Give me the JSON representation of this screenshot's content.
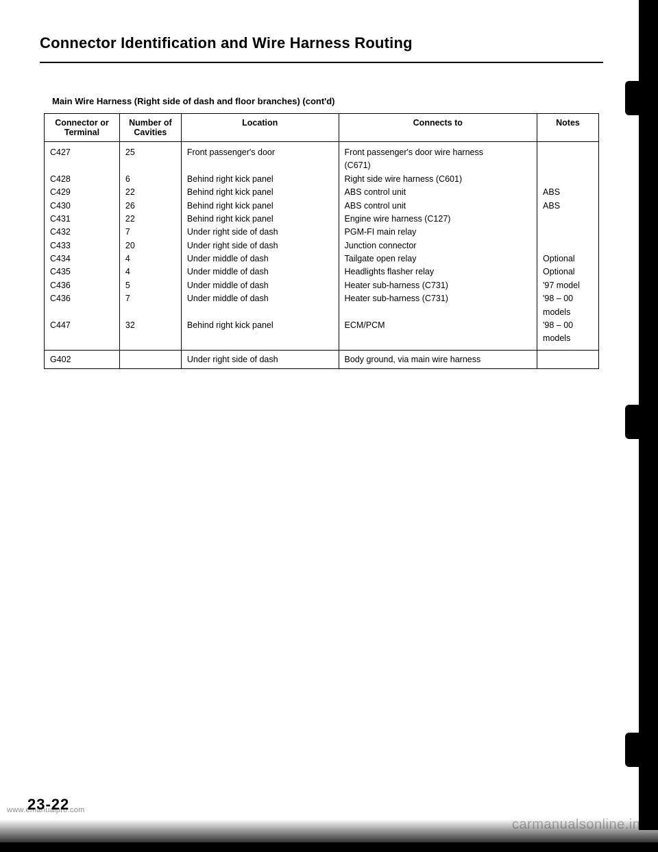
{
  "title": "Connector Identification and Wire Harness Routing",
  "subtitle": "Main Wire Harness (Right side of dash and floor branches) (cont'd)",
  "table": {
    "columns": [
      "Connector or Terminal",
      "Number of Cavities",
      "Location",
      "Connects to",
      "Notes"
    ],
    "body_rows": [
      {
        "ct": "C427",
        "nc": "25",
        "loc": "Front passenger's door",
        "conn": "Front passenger's door wire harness (C671)",
        "note": ""
      },
      {
        "ct": "C428",
        "nc": "6",
        "loc": "Behind right kick panel",
        "conn": "Right side wire harness (C601)",
        "note": ""
      },
      {
        "ct": "C429",
        "nc": "22",
        "loc": "Behind right kick panel",
        "conn": "ABS control unit",
        "note": "ABS"
      },
      {
        "ct": "C430",
        "nc": "26",
        "loc": "Behind right kick panel",
        "conn": "ABS control unit",
        "note": "ABS"
      },
      {
        "ct": "C431",
        "nc": "22",
        "loc": "Behind right kick panel",
        "conn": "Engine wire harness (C127)",
        "note": ""
      },
      {
        "ct": "C432",
        "nc": "7",
        "loc": "Under right side of dash",
        "conn": "PGM-FI main relay",
        "note": ""
      },
      {
        "ct": "C433",
        "nc": "20",
        "loc": "Under right side of dash",
        "conn": "Junction connector",
        "note": ""
      },
      {
        "ct": "C434",
        "nc": "4",
        "loc": "Under middle of dash",
        "conn": "Tailgate open relay",
        "note": "Optional"
      },
      {
        "ct": "C435",
        "nc": "4",
        "loc": "Under middle of dash",
        "conn": "Headlights flasher relay",
        "note": "Optional"
      },
      {
        "ct": "C436",
        "nc": "5",
        "loc": "Under middle of dash",
        "conn": "Heater sub-harness (C731)",
        "note": "'97 model"
      },
      {
        "ct": "C436",
        "nc": "7",
        "loc": "Under middle of dash",
        "conn": "Heater sub-harness (C731)",
        "note": "'98 – 00 models"
      },
      {
        "ct": "C447",
        "nc": "32",
        "loc": "Behind right kick panel",
        "conn": "ECM/PCM",
        "note": "'98 – 00 models"
      }
    ],
    "footer_row": {
      "ct": "G402",
      "nc": "",
      "loc": "Under right side of dash",
      "conn": "Body ground, via main wire harness",
      "note": ""
    }
  },
  "page_number": "23-22",
  "watermark_left": "www.emanualpro.com",
  "watermark_right": "carmanualsonline.info",
  "colors": {
    "text": "#000000",
    "background": "#ffffff",
    "watermark": "#b9b9b9",
    "border": "#000000"
  }
}
